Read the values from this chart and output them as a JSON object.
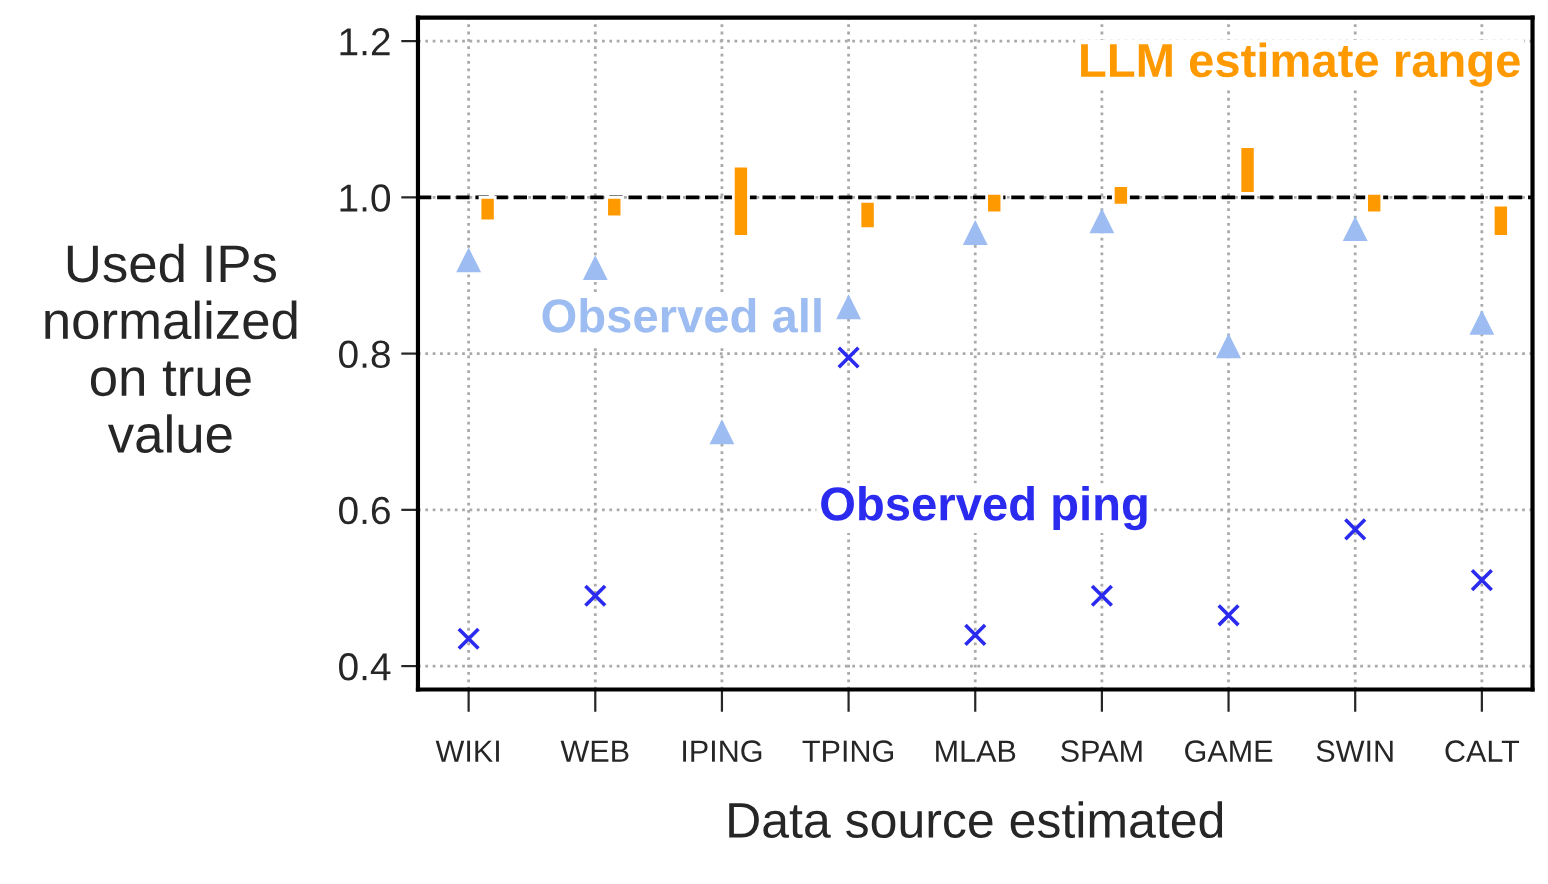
{
  "chart_data": {
    "type": "scatter",
    "xlabel": "Data source estimated",
    "ylabel": "Used IPs\nnormalized\non true\nvalue",
    "categories": [
      "WIKI",
      "WEB",
      "IPING",
      "TPING",
      "MLAB",
      "SPAM",
      "GAME",
      "SWIN",
      "CALT"
    ],
    "series": [
      {
        "name": "LLM estimate range",
        "type": "bar",
        "color": "#ff9900",
        "base": [
          0.97,
          0.975,
          0.95,
          0.96,
          0.98,
          0.99,
          1.005,
          0.98,
          0.95
        ],
        "values": [
          0.03,
          0.025,
          0.09,
          0.035,
          0.025,
          0.025,
          0.06,
          0.025,
          0.04
        ]
      },
      {
        "name": "Observed all",
        "marker": "triangle",
        "color": "#9dbdf2",
        "values": [
          0.92,
          0.91,
          0.7,
          0.86,
          0.955,
          0.97,
          0.81,
          0.96,
          0.84
        ]
      },
      {
        "name": "Observed ping",
        "marker": "cross",
        "color": "#2b2bf0",
        "values": [
          0.435,
          0.49,
          null,
          0.795,
          0.44,
          0.49,
          0.465,
          0.575,
          0.51
        ]
      }
    ],
    "ylim": [
      0.37,
      1.23
    ],
    "yticks": [
      0.4,
      0.6,
      0.8,
      {
        "value": 1.0,
        "label": "1.0"
      },
      1.2
    ],
    "grid": true,
    "legend": false,
    "ref_lines": [
      {
        "axis": "y",
        "value": 1.0,
        "color": "#000000",
        "line_style": "dashed"
      }
    ]
  }
}
